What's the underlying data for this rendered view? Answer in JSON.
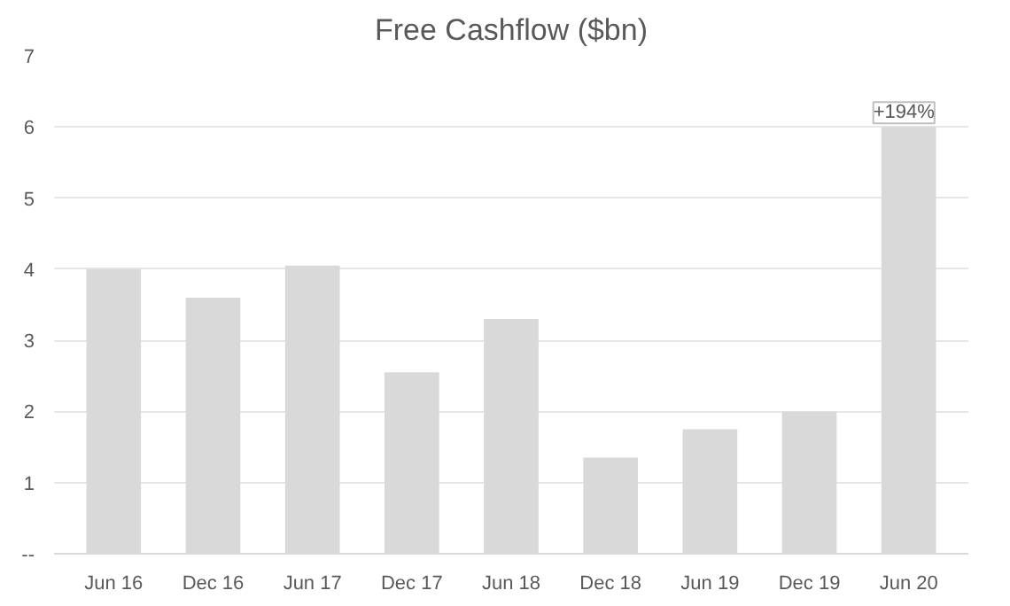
{
  "chart_data": {
    "type": "bar",
    "title": "Free Cashflow ($bn)",
    "categories": [
      "Jun 16",
      "Dec 16",
      "Jun 17",
      "Dec 17",
      "Jun 18",
      "Dec 18",
      "Jun 19",
      "Dec 19",
      "Jun 20"
    ],
    "values": [
      4.0,
      3.6,
      4.05,
      2.55,
      3.3,
      1.35,
      1.75,
      2.0,
      6.0
    ],
    "color": "#d9d9d9",
    "ylim": [
      0,
      7
    ],
    "yticks": [
      {
        "value": 0,
        "label": "--"
      },
      1,
      2,
      3,
      4,
      5,
      6,
      7
    ],
    "grid": "y",
    "annotations": [
      {
        "text": "+194%",
        "x": "Jun 20",
        "y": 6.0
      }
    ]
  }
}
